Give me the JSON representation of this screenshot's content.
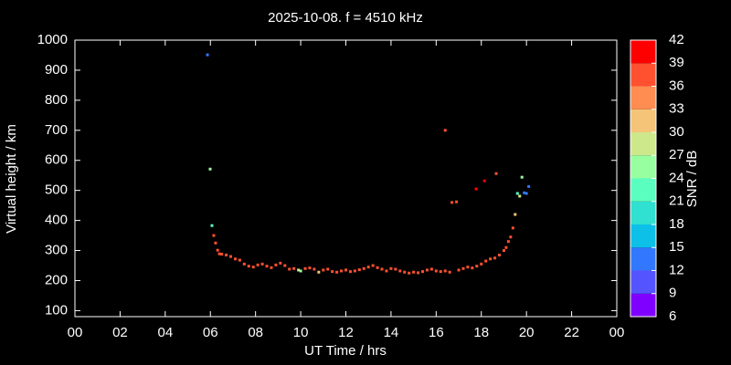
{
  "chart_data": {
    "type": "scatter",
    "title": "2025-10-08. f = 4510 kHz",
    "xlabel": "UT Time / hrs",
    "ylabel": "Virtual height / km",
    "xlim": [
      0,
      24
    ],
    "ylim": [
      80,
      1000
    ],
    "xticks": [
      {
        "value": 0,
        "label": "00"
      },
      {
        "value": 2,
        "label": "02"
      },
      {
        "value": 4,
        "label": "04"
      },
      {
        "value": 6,
        "label": "06"
      },
      {
        "value": 8,
        "label": "08"
      },
      10,
      12,
      14,
      16,
      18,
      20,
      22,
      {
        "value": 24,
        "label": "00"
      }
    ],
    "yticks": [
      100,
      200,
      300,
      400,
      500,
      600,
      700,
      800,
      900,
      1000
    ],
    "colorbar": {
      "label": "SNR / dB",
      "lim": [
        6,
        42
      ],
      "ticks": [
        6,
        9,
        12,
        15,
        18,
        21,
        24,
        27,
        30,
        33,
        36,
        39,
        42
      ],
      "colors": [
        "#8000ff",
        "#5555ff",
        "#3278ff",
        "#0cc0e8",
        "#30e0d0",
        "#5affc0",
        "#98ffa0",
        "#cce88a",
        "#f5c478",
        "#ff8c50",
        "#ff5030",
        "#ff0000"
      ]
    },
    "x": [
      5.87,
      5.99,
      6.07,
      6.15,
      6.23,
      6.32,
      6.4,
      6.5,
      6.7,
      6.9,
      7.1,
      7.3,
      7.5,
      7.7,
      7.9,
      8.1,
      8.3,
      8.5,
      8.7,
      8.9,
      9.1,
      9.3,
      9.5,
      9.7,
      9.9,
      10.0,
      10.2,
      10.4,
      10.6,
      10.8,
      11.0,
      11.2,
      11.4,
      11.6,
      11.8,
      12.0,
      12.2,
      12.4,
      12.6,
      12.8,
      13.0,
      13.2,
      13.4,
      13.6,
      13.8,
      14.0,
      14.2,
      14.4,
      14.6,
      14.8,
      15.0,
      15.2,
      15.4,
      15.6,
      15.8,
      16.0,
      16.2,
      16.4,
      16.6,
      16.4,
      16.7,
      16.9,
      17.0,
      17.2,
      17.4,
      17.6,
      17.8,
      18.0,
      18.2,
      18.4,
      18.6,
      18.8,
      19.0,
      19.1,
      19.2,
      19.3,
      19.4,
      19.5,
      17.77,
      18.14,
      18.66,
      19.6,
      19.7,
      19.8,
      19.9,
      20.1,
      20.0
    ],
    "values": [
      951,
      571,
      383,
      350,
      325,
      301,
      289,
      288,
      285,
      280,
      272,
      268,
      255,
      248,
      245,
      252,
      255,
      248,
      243,
      252,
      258,
      250,
      238,
      240,
      235,
      232,
      240,
      242,
      238,
      228,
      235,
      238,
      230,
      228,
      232,
      235,
      230,
      232,
      236,
      240,
      245,
      250,
      243,
      238,
      232,
      240,
      238,
      232,
      228,
      225,
      228,
      226,
      230,
      235,
      238,
      232,
      230,
      232,
      228,
      700,
      460,
      462,
      235,
      240,
      245,
      242,
      248,
      255,
      265,
      272,
      275,
      285,
      300,
      310,
      330,
      345,
      375,
      420,
      505,
      532,
      556,
      490,
      481,
      544,
      492,
      513,
      490
    ],
    "snr": [
      12,
      24,
      23,
      38,
      37,
      36,
      37,
      37,
      38,
      37,
      38,
      37,
      38,
      37,
      38,
      37,
      38,
      37,
      36,
      37,
      36,
      37,
      38,
      37,
      28,
      25,
      37,
      38,
      37,
      30,
      37,
      38,
      37,
      38,
      37,
      36,
      37,
      38,
      37,
      38,
      37,
      36,
      37,
      38,
      37,
      38,
      37,
      38,
      37,
      38,
      37,
      38,
      37,
      38,
      37,
      38,
      37,
      38,
      37,
      38,
      38,
      38,
      38,
      37,
      38,
      37,
      38,
      37,
      38,
      37,
      38,
      37,
      36,
      37,
      38,
      37,
      38,
      30,
      39,
      39,
      38,
      22,
      27,
      24,
      14,
      12,
      12
    ]
  }
}
